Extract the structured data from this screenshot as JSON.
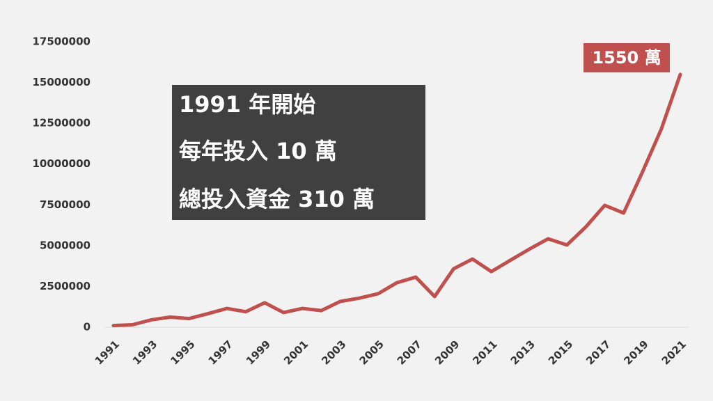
{
  "chart_data": {
    "type": "line",
    "x": [
      1991,
      1992,
      1993,
      1994,
      1995,
      1996,
      1997,
      1998,
      1999,
      2000,
      2001,
      2002,
      2003,
      2004,
      2005,
      2006,
      2007,
      2008,
      2009,
      2010,
      2011,
      2012,
      2013,
      2014,
      2015,
      2016,
      2017,
      2018,
      2019,
      2020,
      2021
    ],
    "series": [
      {
        "color": "#c0504d",
        "values": [
          100000,
          150000,
          450000,
          620000,
          530000,
          830000,
          1150000,
          950000,
          1500000,
          900000,
          1150000,
          1020000,
          1580000,
          1780000,
          2050000,
          2730000,
          3070000,
          1880000,
          3580000,
          4180000,
          3410000,
          4100000,
          4780000,
          5420000,
          5040000,
          6150000,
          7470000,
          7000000,
          9520000,
          12160000,
          15500000
        ]
      }
    ],
    "xlim": [
      1991,
      2021
    ],
    "xticks": [
      1991,
      1993,
      1995,
      1997,
      1999,
      2001,
      2003,
      2005,
      2007,
      2009,
      2011,
      2013,
      2015,
      2017,
      2019,
      2021
    ],
    "ylim": [
      0,
      17500000
    ],
    "yticks": [
      0,
      2500000,
      5000000,
      7500000,
      10000000,
      12500000,
      15000000,
      17500000
    ],
    "annotations": [
      "1991 年開始",
      "每年投入 10 萬",
      "總投入資金 310 萬"
    ],
    "end_label": "1550 萬"
  }
}
